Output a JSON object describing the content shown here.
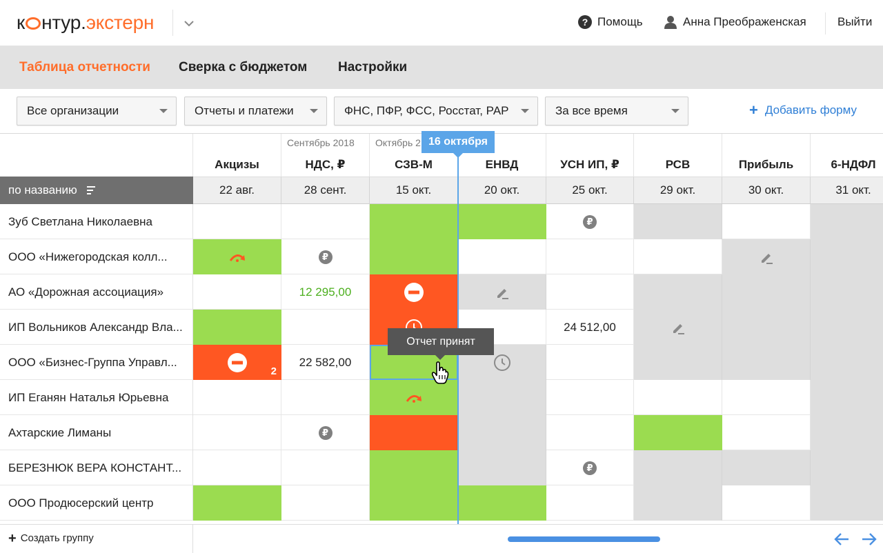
{
  "app": {
    "logo_left": "к",
    "logo_right": "нтур.",
    "logo_accent": "экстерн",
    "help_label": "Помощь",
    "user_name": "Анна Преображенская",
    "logout_label": "Выйти"
  },
  "nav": {
    "tabs": [
      {
        "label": "Таблица отчетности",
        "active": true
      },
      {
        "label": "Сверка с бюджетом",
        "active": false
      },
      {
        "label": "Настройки",
        "active": false
      }
    ]
  },
  "filters": {
    "organizations": "Все организации",
    "report_type": "Отчеты и платежи",
    "agencies": "ФНС, ПФР, ФСС, Росстат, РАР",
    "period": "За все время",
    "add_form_label": "Добавить форму"
  },
  "grid": {
    "sort_label": "по названию",
    "today_label": "16 октября",
    "columns": [
      {
        "name": "Акцизы",
        "date": "22 авг.",
        "period": ""
      },
      {
        "name": "НДС, ₽",
        "date": "28 сент.",
        "period": "Сентябрь 2018"
      },
      {
        "name": "СЗВ-М",
        "date": "15 окт.",
        "period": "Октябрь 2"
      },
      {
        "name": "ЕНВД",
        "date": "20 окт.",
        "period": ""
      },
      {
        "name": "УСН ИП, ₽",
        "date": "25 окт.",
        "period": ""
      },
      {
        "name": "РСВ",
        "date": "29 окт.",
        "period": ""
      },
      {
        "name": "Прибыль",
        "date": "30 окт.",
        "period": ""
      },
      {
        "name": "6-НДФЛ",
        "date": "31 окт.",
        "period": ""
      }
    ],
    "rows": [
      {
        "name": "Зуб Светлана Николаевна"
      },
      {
        "name": "ООО «Нижегородская колл..."
      },
      {
        "name": "АО «Дорожная ассоциация»"
      },
      {
        "name": "ИП Вольников Александр Вла..."
      },
      {
        "name": "ООО «Бизнес-Группа Управл..."
      },
      {
        "name": "ИП Еганян Наталья Юрьевна"
      },
      {
        "name": "Ахтарские Лиманы"
      },
      {
        "name": "БЕРЕЗНЮК ВЕРА КОНСТАНТ..."
      },
      {
        "name": "ООО Продюсерский центр"
      }
    ],
    "values": {
      "ad_nds": "12 295,00",
      "vb_usn": "24 512,00",
      "bg_nds": "22 582,00",
      "bg_badge": "2"
    },
    "rub_symbol": "₽",
    "tooltip": "Отчет принят"
  },
  "footer": {
    "create_group": "Создать группу"
  },
  "colors": {
    "accent": "#ff6d2a",
    "green": "#9bdc50",
    "red": "#ff5722",
    "blue": "#5ba5e8",
    "gray": "#dedede"
  },
  "icons": [
    "question-icon",
    "user-icon",
    "chevron-down-icon",
    "plus-icon",
    "sort-icon",
    "ruble-icon",
    "redo-arrow-icon",
    "stop-icon",
    "clock-icon",
    "pencil-icon",
    "arrow-left-icon",
    "arrow-right-icon",
    "hand-cursor-icon"
  ]
}
